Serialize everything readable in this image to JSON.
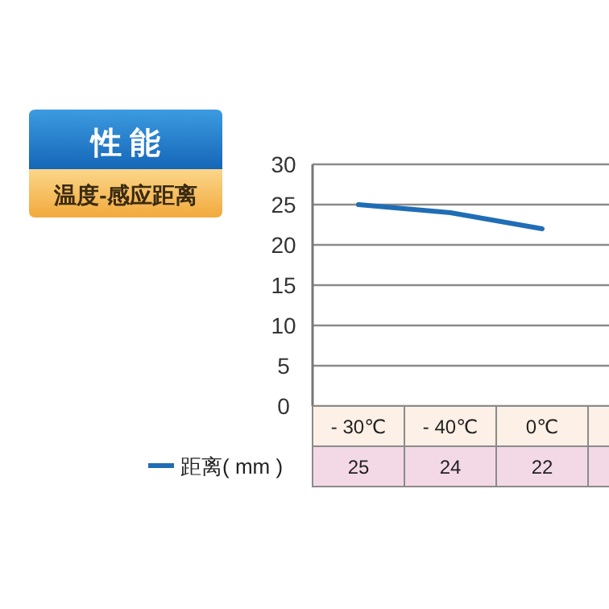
{
  "chart_data": {
    "type": "line",
    "title": "性 能",
    "subtitle": "温度-感应距离",
    "categories": [
      "- 30℃",
      "- 40℃",
      "0℃"
    ],
    "series": [
      {
        "name": "距离( mm )",
        "color": "#1f6db5",
        "values": [
          25,
          24,
          22
        ]
      }
    ],
    "ylim": [
      0,
      30
    ],
    "yticks": [
      0,
      5,
      10,
      15,
      20,
      25,
      30
    ],
    "grid": "y",
    "data_labels": true,
    "legend": "bottom left",
    "marker": "none",
    "line_style": "solid"
  }
}
